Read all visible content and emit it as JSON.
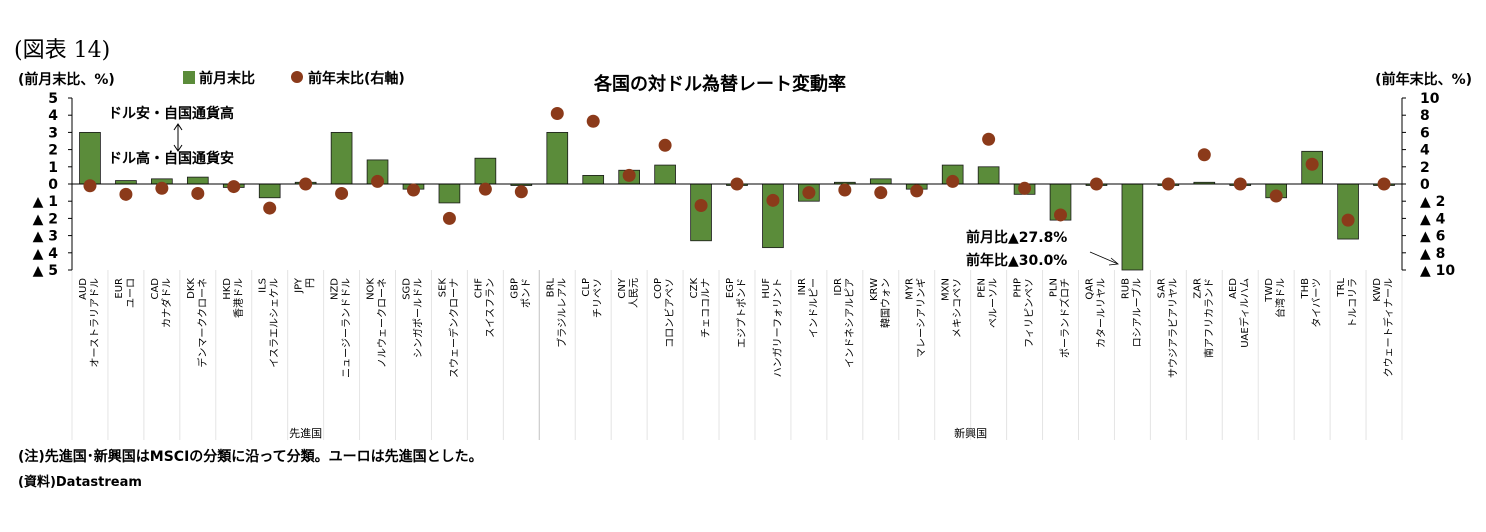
{
  "figure_label": "(図表 14)",
  "notes": {
    "note": "(注)先進国･新興国はMSCIの分類に沿って分類。ユーロは先進国とした。",
    "source": "(資料)Datastream"
  },
  "chart_data": {
    "type": "bar",
    "title": "各国の対ドル為替レート変動率",
    "left_axis_label": "(前月末比、%)",
    "right_axis_label": "(前年末比、%)",
    "left_axis_ticks": [
      "5",
      "4",
      "3",
      "2",
      "1",
      "0",
      "▲ 1",
      "▲ 2",
      "▲ 3",
      "▲ 4",
      "▲ 5"
    ],
    "right_axis_ticks": [
      "10",
      "8",
      "6",
      "4",
      "2",
      "0",
      "▲ 2",
      "▲ 4",
      "▲ 6",
      "▲ 8",
      "▲ 10"
    ],
    "ylim_left": [
      -5,
      5
    ],
    "ylim_right": [
      -10,
      10
    ],
    "legend": {
      "bar": "前月末比",
      "dot": "前年末比(右軸)"
    },
    "series": [
      {
        "name": "前月末比",
        "axis": "left",
        "kind": "bar",
        "color": "#5b8c3a",
        "values": [
          3.0,
          0.2,
          0.3,
          0.4,
          -0.2,
          -0.8,
          0.1,
          3.0,
          1.4,
          -0.3,
          -1.1,
          1.5,
          0.0,
          3.0,
          0.5,
          0.8,
          1.1,
          -3.3,
          0.0,
          -3.7,
          -1.0,
          0.1,
          0.3,
          -0.3,
          1.1,
          1.0,
          -0.6,
          -2.1,
          0.0,
          -27.8,
          0.0,
          0.1,
          0.0,
          -0.8,
          1.9,
          -3.2,
          0.0
        ]
      },
      {
        "name": "前年末比(右軸)",
        "axis": "right",
        "kind": "dot",
        "color": "#8b3a1a",
        "values": [
          -0.2,
          -1.2,
          -0.5,
          -1.1,
          -0.3,
          -2.8,
          0.0,
          -1.1,
          0.3,
          -0.7,
          -4.0,
          -0.6,
          -0.9,
          8.2,
          7.3,
          1.0,
          4.5,
          -2.5,
          0.0,
          -1.9,
          -1.0,
          -0.7,
          -1.0,
          -0.8,
          0.3,
          5.2,
          -0.5,
          -3.6,
          0.0,
          -30.0,
          0.0,
          3.4,
          0.0,
          -1.4,
          2.3,
          -4.2,
          0.0
        ]
      }
    ],
    "categories": [
      {
        "code": "AUD",
        "name": "オーストラリアドル"
      },
      {
        "code": "EUR",
        "name": "ユーロ"
      },
      {
        "code": "CAD",
        "name": "カナダドル"
      },
      {
        "code": "DKK",
        "name": "デンマーククローネ"
      },
      {
        "code": "HKD",
        "name": "香港ドル"
      },
      {
        "code": "ILS",
        "name": "イスラエルシェケル"
      },
      {
        "code": "JPY",
        "name": "円"
      },
      {
        "code": "NZD",
        "name": "ニュージーランドドル"
      },
      {
        "code": "NOK",
        "name": "ノルウェークローネ"
      },
      {
        "code": "SGD",
        "name": "シンガポールドル"
      },
      {
        "code": "SEK",
        "name": "スウェーデンクローナ"
      },
      {
        "code": "CHF",
        "name": "スイスフラン"
      },
      {
        "code": "GBP",
        "name": "ポンド"
      },
      {
        "code": "BRL",
        "name": "ブラジルレアル"
      },
      {
        "code": "CLP",
        "name": "チリペソ"
      },
      {
        "code": "CNY",
        "name": "人民元"
      },
      {
        "code": "COP",
        "name": "コロンビアペソ"
      },
      {
        "code": "CZK",
        "name": "チェココルナ"
      },
      {
        "code": "EGP",
        "name": "エジプトポンド"
      },
      {
        "code": "HUF",
        "name": "ハンガリーフォリント"
      },
      {
        "code": "INR",
        "name": "インドルピー"
      },
      {
        "code": "IDR",
        "name": "インドネシアルピア"
      },
      {
        "code": "KRW",
        "name": "韓国ウォン"
      },
      {
        "code": "MYR",
        "name": "マレーシアリンギ"
      },
      {
        "code": "MXN",
        "name": "メキシコペソ"
      },
      {
        "code": "PEN",
        "name": "ペルーソル"
      },
      {
        "code": "PHP",
        "name": "フィリピンペソ"
      },
      {
        "code": "PLN",
        "name": "ポーランドズロチ"
      },
      {
        "code": "QAR",
        "name": "カタールリヤル"
      },
      {
        "code": "RUB",
        "name": "ロシアルーブル"
      },
      {
        "code": "SAR",
        "name": "サウジアラビアリヤル"
      },
      {
        "code": "ZAR",
        "name": "南アフリカランド"
      },
      {
        "code": "AED",
        "name": "UAEディルハム"
      },
      {
        "code": "TWD",
        "name": "台湾ドル"
      },
      {
        "code": "THB",
        "name": "タイバーツ"
      },
      {
        "code": "TRL",
        "name": "トルコリラ"
      },
      {
        "code": "KWD",
        "name": "クウェートディナール"
      }
    ],
    "groups": [
      {
        "label": "先進国",
        "count": 13
      },
      {
        "label": "新興国",
        "count": 24
      }
    ],
    "annotations": {
      "upper_arrow": "ドル安・自国通貨高",
      "lower_arrow": "ドル高・自国通貨安",
      "rub_bar": "前月比▲27.8%",
      "rub_dot": "前年比▲30.0%"
    },
    "grid": false,
    "legend_position": "top-left"
  }
}
